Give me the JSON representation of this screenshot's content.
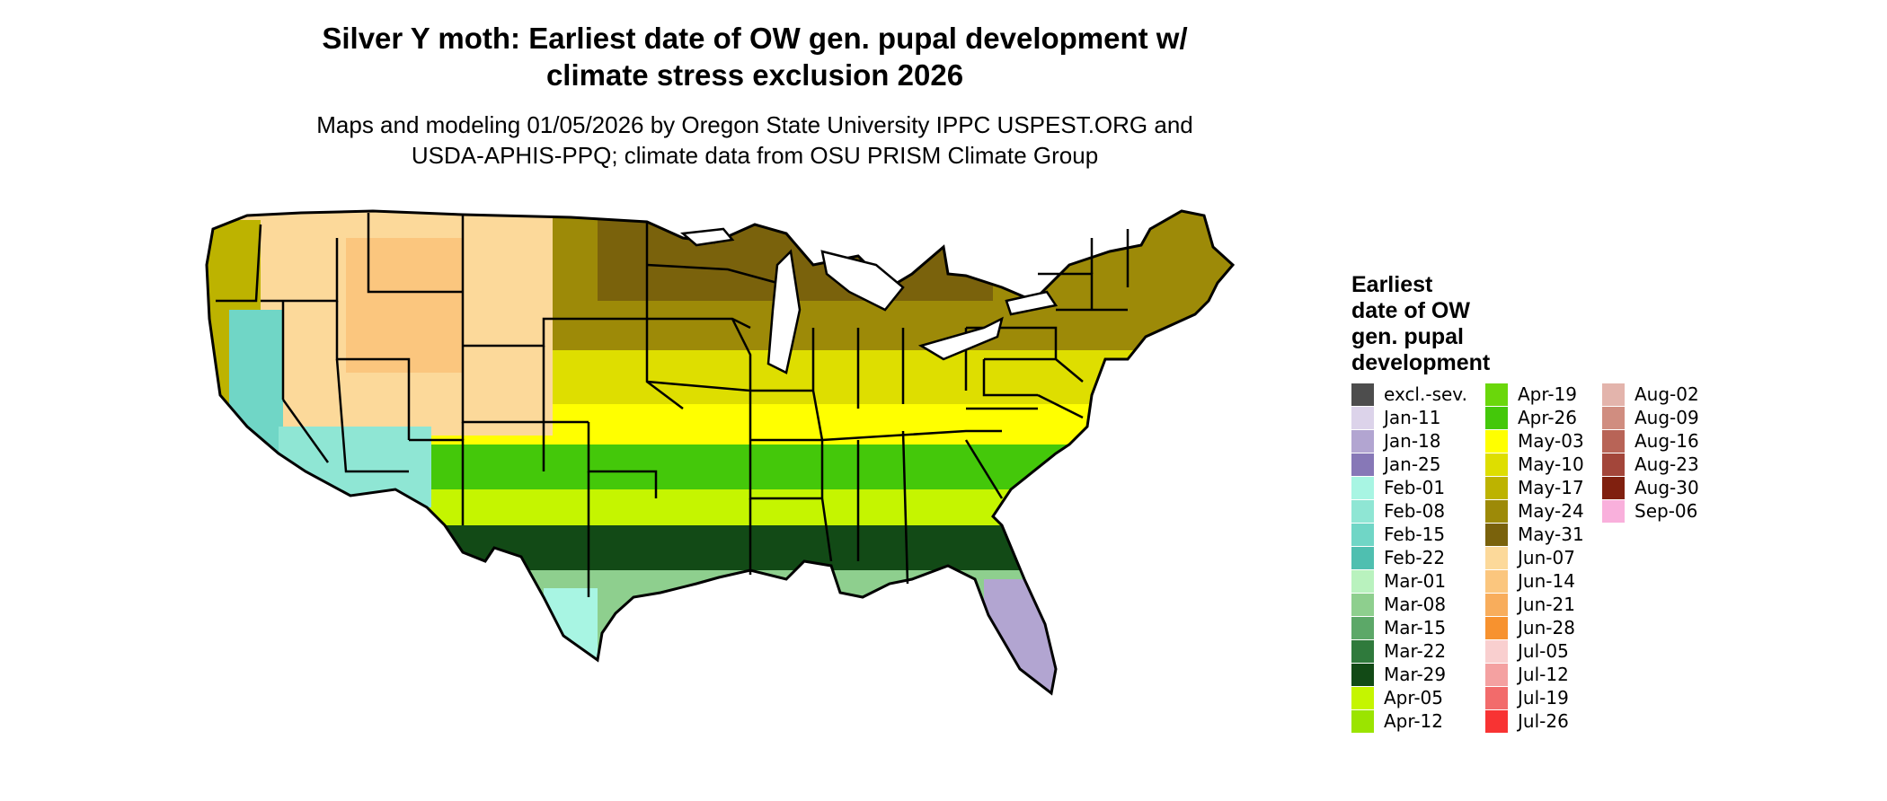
{
  "title_line1": "Silver Y moth: Earliest date of OW gen. pupal development w/",
  "title_line2": "climate stress exclusion 2026",
  "subtitle_line1": "Maps and modeling 01/05/2026 by Oregon State University IPPC USPEST.ORG and",
  "subtitle_line2": "USDA-APHIS-PPQ; climate data from OSU PRISM Climate Group",
  "legend": {
    "title_lines": [
      "Earliest",
      "date of OW",
      "gen. pupal",
      "development"
    ],
    "columns": [
      [
        {
          "label": "excl.-sev.",
          "color": "#4d4d4d"
        },
        {
          "label": "Jan-11",
          "color": "#dcd3ea"
        },
        {
          "label": "Jan-18",
          "color": "#b2a5d1"
        },
        {
          "label": "Jan-25",
          "color": "#8778b7"
        },
        {
          "label": "Feb-01",
          "color": "#a8f5e3"
        },
        {
          "label": "Feb-08",
          "color": "#8fe6d4"
        },
        {
          "label": "Feb-15",
          "color": "#70d6c6"
        },
        {
          "label": "Feb-22",
          "color": "#4fbfb0"
        },
        {
          "label": "Mar-01",
          "color": "#b9f2be"
        },
        {
          "label": "Mar-08",
          "color": "#8ecf8e"
        },
        {
          "label": "Mar-15",
          "color": "#5ca868"
        },
        {
          "label": "Mar-22",
          "color": "#2f7a3c"
        },
        {
          "label": "Mar-29",
          "color": "#124a16"
        },
        {
          "label": "Apr-05",
          "color": "#c5f500"
        },
        {
          "label": "Apr-12",
          "color": "#9be400"
        }
      ],
      [
        {
          "label": "Apr-19",
          "color": "#6ad70b"
        },
        {
          "label": "Apr-26",
          "color": "#44c80a"
        },
        {
          "label": "May-03",
          "color": "#ffff00"
        },
        {
          "label": "May-10",
          "color": "#dede00"
        },
        {
          "label": "May-17",
          "color": "#bdb300"
        },
        {
          "label": "May-24",
          "color": "#9d8a08"
        },
        {
          "label": "May-31",
          "color": "#7a620c"
        },
        {
          "label": "Jun-07",
          "color": "#fcd99a"
        },
        {
          "label": "Jun-14",
          "color": "#fbc67e"
        },
        {
          "label": "Jun-21",
          "color": "#f8ad5c"
        },
        {
          "label": "Jun-28",
          "color": "#f7922f"
        },
        {
          "label": "Jul-05",
          "color": "#f9cfcf"
        },
        {
          "label": "Jul-12",
          "color": "#f4a1a1"
        },
        {
          "label": "Jul-19",
          "color": "#f26b6b"
        },
        {
          "label": "Jul-26",
          "color": "#f83333"
        }
      ],
      [
        {
          "label": "Aug-02",
          "color": "#e3b4ac"
        },
        {
          "label": "Aug-09",
          "color": "#d08d80"
        },
        {
          "label": "Aug-16",
          "color": "#b86457"
        },
        {
          "label": "Aug-23",
          "color": "#a3463a"
        },
        {
          "label": "Aug-30",
          "color": "#80200f"
        },
        {
          "label": "Sep-06",
          "color": "#f9b0dc"
        }
      ]
    ]
  },
  "map_colors": {
    "outline": "#000000",
    "ocean": "#ffffff"
  }
}
